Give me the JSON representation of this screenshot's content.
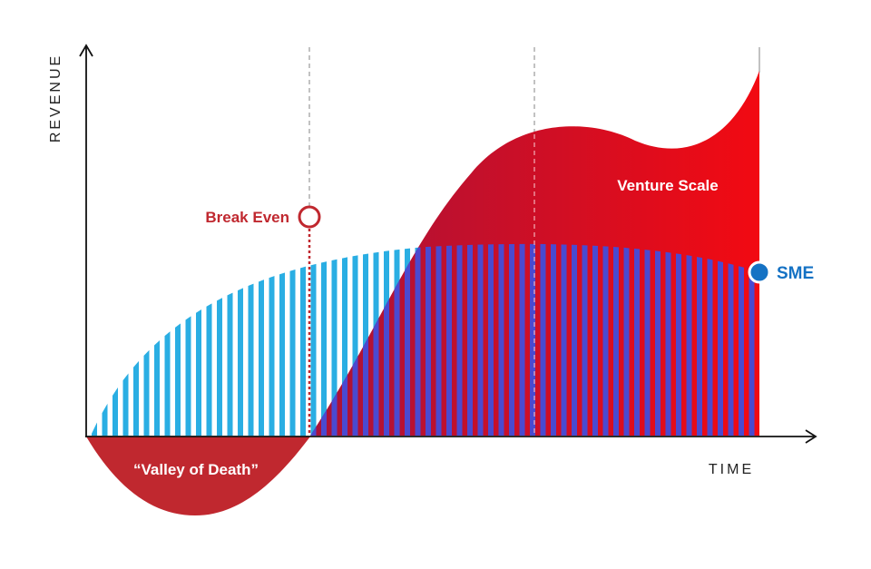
{
  "axes": {
    "y_label": "REVENUE",
    "x_label": "TIME"
  },
  "labels": {
    "break_even": "Break Even",
    "venture_scale": "Venture Scale",
    "valley_of_death": "“Valley of Death”",
    "sme": "SME"
  },
  "colors": {
    "venture_red": "#d0102c",
    "valley_red": "#c0282f",
    "sme_blue": "#2aaee3",
    "overlap_blue": "#4a4ad0",
    "marker_blue": "#1572c4",
    "axis": "#111111",
    "guide_dash": "#999999"
  }
}
